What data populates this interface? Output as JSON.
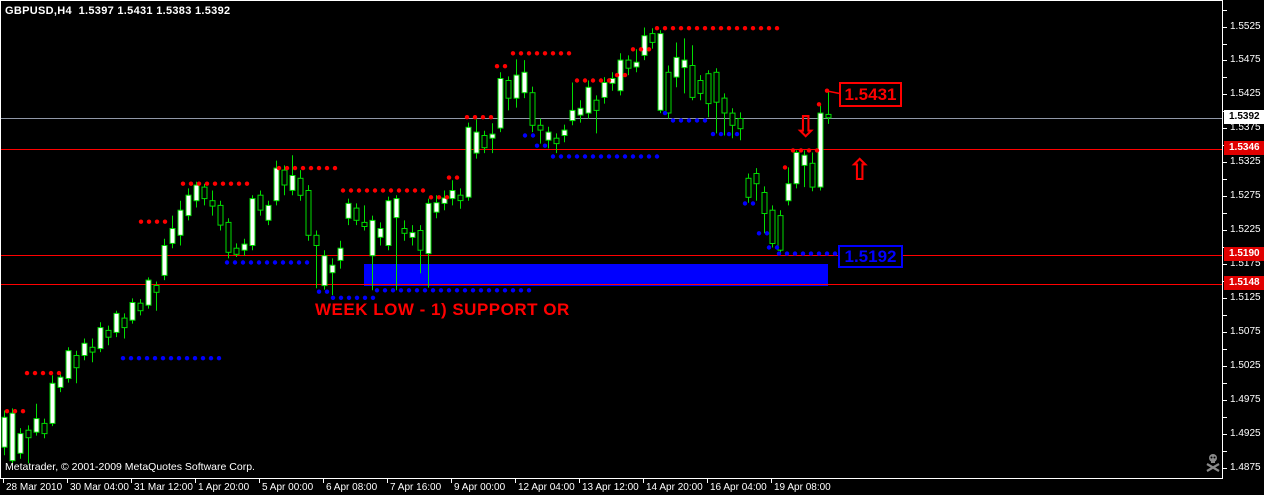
{
  "header": {
    "symbol_line": "GBPUSD,H4  1.5397 1.5431 1.5383 1.5392"
  },
  "watermark": "Metatrader, © 2001-2009 MetaQuotes Software Corp.",
  "colors": {
    "background": "#000000",
    "frame": "#ffffff",
    "candle_outline": "#00dd00",
    "bull_fill": "#ffffff",
    "bear_fill": "#000000",
    "red_level": "#ff0000",
    "blue_level": "#0000ff",
    "bid_line": "#9098a8",
    "axis_text": "#ffffff",
    "current_box_bg": "#ffffff",
    "alert_box_bg": "#e00000"
  },
  "chart_data": {
    "type": "candlestick",
    "title": "GBPUSD,H4",
    "symbol": "GBPUSD",
    "timeframe": "H4",
    "ohlc_display": {
      "open": "1.5397",
      "high": "1.5431",
      "low": "1.5383",
      "close": "1.5392"
    },
    "ylim": [
      1.486,
      1.5553
    ],
    "grid": false,
    "price_axis": {
      "labels": [
        "1.5525",
        "1.5475",
        "1.5425",
        "1.5375",
        "1.5325",
        "1.5275",
        "1.5225",
        "1.5175",
        "1.5125",
        "1.5075",
        "1.5025",
        "1.4975",
        "1.4925",
        "1.4875"
      ],
      "minor_tick_step": 0.0025,
      "boxes": [
        {
          "text": "1.5392",
          "price": 1.5392,
          "type": "current"
        },
        {
          "text": "1.5346",
          "price": 1.5346,
          "type": "alert"
        },
        {
          "text": "1.5190",
          "price": 1.519,
          "type": "alert"
        },
        {
          "text": "1.5148",
          "price": 1.5148,
          "type": "alert"
        }
      ]
    },
    "time_axis": {
      "labels": [
        "28 Mar 2010",
        "30 Mar 04:00",
        "31 Mar 12:00",
        "1 Apr 20:00",
        "5 Apr 00:00",
        "6 Apr 08:00",
        "7 Apr 16:00",
        "9 Apr 00:00",
        "12 Apr 04:00",
        "13 Apr 12:00",
        "14 Apr 20:00",
        "16 Apr 04:00",
        "19 Apr 08:00"
      ],
      "candles_per_label": 8
    },
    "hlines": [
      {
        "price": 1.5392,
        "color": "#9098a8",
        "name": "bid-line"
      },
      {
        "price": 1.5346,
        "color": "#ff0000",
        "name": "resistance-line"
      },
      {
        "price": 1.519,
        "color": "#ff0000",
        "name": "support-line-1"
      },
      {
        "price": 1.5148,
        "color": "#ff0000",
        "name": "support-line-2"
      }
    ],
    "rectangle": {
      "x1": 363,
      "x2": 827,
      "price_top": 1.5176,
      "price_bottom": 1.5144,
      "color": "#0000ff"
    },
    "candles": [
      [
        1.4907,
        1.4961,
        1.4895,
        1.4951
      ],
      [
        1.4887,
        1.4964,
        1.4883,
        1.4957
      ],
      [
        1.4898,
        1.4935,
        1.489,
        1.4927
      ],
      [
        1.4932,
        1.4939,
        1.4883,
        1.4921
      ],
      [
        1.4929,
        1.4971,
        1.4924,
        1.4949
      ],
      [
        1.4942,
        1.4949,
        1.492,
        1.4927
      ],
      [
        1.4942,
        1.5013,
        1.4938,
        1.5001
      ],
      [
        1.4995,
        1.5017,
        1.4988,
        1.501
      ],
      [
        1.5008,
        1.5054,
        1.5002,
        1.5049
      ],
      [
        1.5042,
        1.5049,
        1.5001,
        1.5024
      ],
      [
        1.5042,
        1.5067,
        1.5035,
        1.506
      ],
      [
        1.5054,
        1.5067,
        1.5032,
        1.5047
      ],
      [
        1.5052,
        1.5091,
        1.5047,
        1.5083
      ],
      [
        1.5079,
        1.5086,
        1.5057,
        1.5069
      ],
      [
        1.5076,
        1.5108,
        1.5069,
        1.5104
      ],
      [
        1.5097,
        1.5104,
        1.5067,
        1.5083
      ],
      [
        1.5094,
        1.5126,
        1.5089,
        1.512
      ],
      [
        1.5119,
        1.5125,
        1.5101,
        1.5108
      ],
      [
        1.5116,
        1.5157,
        1.5111,
        1.5153
      ],
      [
        1.5145,
        1.5151,
        1.5108,
        1.5135
      ],
      [
        1.516,
        1.5214,
        1.5153,
        1.5204
      ],
      [
        1.5207,
        1.5248,
        1.52,
        1.5229
      ],
      [
        1.5219,
        1.527,
        1.5204,
        1.5256
      ],
      [
        1.5248,
        1.5288,
        1.5241,
        1.5278
      ],
      [
        1.527,
        1.5298,
        1.526,
        1.5293
      ],
      [
        1.529,
        1.5295,
        1.5263,
        1.5273
      ],
      [
        1.527,
        1.5285,
        1.5248,
        1.5262
      ],
      [
        1.5263,
        1.527,
        1.5226,
        1.5234
      ],
      [
        1.5238,
        1.5244,
        1.5185,
        1.5194
      ],
      [
        1.52,
        1.5207,
        1.5187,
        1.5191
      ],
      [
        1.5197,
        1.5214,
        1.5189,
        1.5206
      ],
      [
        1.5204,
        1.5278,
        1.5197,
        1.5273
      ],
      [
        1.5278,
        1.5285,
        1.5248,
        1.5256
      ],
      [
        1.5241,
        1.527,
        1.5234,
        1.5263
      ],
      [
        1.527,
        1.5329,
        1.5263,
        1.5318
      ],
      [
        1.5315,
        1.5322,
        1.5278,
        1.5293
      ],
      [
        1.5285,
        1.5337,
        1.5278,
        1.5307
      ],
      [
        1.5303,
        1.5315,
        1.527,
        1.5278
      ],
      [
        1.5285,
        1.5293,
        1.5211,
        1.5219
      ],
      [
        1.5219,
        1.5226,
        1.5141,
        1.5204
      ],
      [
        1.5145,
        1.5197,
        1.5139,
        1.5189
      ],
      [
        1.5164,
        1.5185,
        1.5131,
        1.5175
      ],
      [
        1.5182,
        1.5211,
        1.517,
        1.52
      ],
      [
        1.5244,
        1.5273,
        1.5234,
        1.5266
      ],
      [
        1.5259,
        1.5266,
        1.5234,
        1.5241
      ],
      [
        1.5238,
        1.5263,
        1.5226,
        1.5232
      ],
      [
        1.5189,
        1.5248,
        1.5138,
        1.5241
      ],
      [
        1.5216,
        1.5238,
        1.5204,
        1.5229
      ],
      [
        1.5204,
        1.5276,
        1.5197,
        1.527
      ],
      [
        1.5245,
        1.5278,
        1.5138,
        1.5273
      ],
      [
        1.5229,
        1.5241,
        1.5211,
        1.5222
      ],
      [
        1.5216,
        1.5234,
        1.5204,
        1.5223
      ],
      [
        1.5226,
        1.5234,
        1.5163,
        1.5197
      ],
      [
        1.5192,
        1.5273,
        1.5142,
        1.5266
      ],
      [
        1.5253,
        1.5278,
        1.5244,
        1.5267
      ],
      [
        1.5266,
        1.5285,
        1.5256,
        1.5274
      ],
      [
        1.5273,
        1.53,
        1.5263,
        1.5285
      ],
      [
        1.5278,
        1.5288,
        1.5258,
        1.527
      ],
      [
        1.5275,
        1.5385,
        1.527,
        1.5378
      ],
      [
        1.534,
        1.539,
        1.5332,
        1.5371
      ],
      [
        1.5366,
        1.5373,
        1.534,
        1.5348
      ],
      [
        1.5362,
        1.5384,
        1.534,
        1.5368
      ],
      [
        1.5377,
        1.5459,
        1.5371,
        1.545
      ],
      [
        1.5447,
        1.5453,
        1.5403,
        1.5421
      ],
      [
        1.5421,
        1.5478,
        1.5407,
        1.5455
      ],
      [
        1.5429,
        1.5477,
        1.5421,
        1.5459
      ],
      [
        1.5429,
        1.5438,
        1.5371,
        1.5381
      ],
      [
        1.5381,
        1.5391,
        1.5354,
        1.5374
      ],
      [
        1.5359,
        1.5379,
        1.5347,
        1.5371
      ],
      [
        1.5362,
        1.5369,
        1.534,
        1.5354
      ],
      [
        1.5366,
        1.5382,
        1.5356,
        1.5374
      ],
      [
        1.5388,
        1.5444,
        1.5381,
        1.5403
      ],
      [
        1.5396,
        1.5418,
        1.5385,
        1.5406
      ],
      [
        1.5399,
        1.5447,
        1.5391,
        1.5437
      ],
      [
        1.5418,
        1.5425,
        1.5369,
        1.5403
      ],
      [
        1.5422,
        1.5452,
        1.5413,
        1.5444
      ],
      [
        1.5443,
        1.5459,
        1.5432,
        1.545
      ],
      [
        1.5432,
        1.5487,
        1.5425,
        1.5477
      ],
      [
        1.5477,
        1.5484,
        1.5455,
        1.5465
      ],
      [
        1.5467,
        1.5493,
        1.5459,
        1.5474
      ],
      [
        1.5484,
        1.5525,
        1.5477,
        1.5513
      ],
      [
        1.5516,
        1.5524,
        1.5494,
        1.5503
      ],
      [
        1.5403,
        1.5521,
        1.5399,
        1.5516
      ],
      [
        1.5459,
        1.5469,
        1.5391,
        1.5399
      ],
      [
        1.5452,
        1.5503,
        1.5437,
        1.5481
      ],
      [
        1.5466,
        1.5509,
        1.5428,
        1.5477
      ],
      [
        1.5469,
        1.5499,
        1.5418,
        1.5422
      ],
      [
        1.5447,
        1.5455,
        1.5418,
        1.5428
      ],
      [
        1.5457,
        1.5462,
        1.5393,
        1.5413
      ],
      [
        1.5459,
        1.5465,
        1.5369,
        1.5415
      ],
      [
        1.5421,
        1.5428,
        1.5366,
        1.5399
      ],
      [
        1.5399,
        1.5406,
        1.5362,
        1.5381
      ],
      [
        1.5391,
        1.54,
        1.5359,
        1.5376
      ],
      [
        1.5303,
        1.531,
        1.5267,
        1.5275
      ],
      [
        1.531,
        1.5318,
        1.527,
        1.5295
      ],
      [
        1.5282,
        1.5291,
        1.5222,
        1.5251
      ],
      [
        1.5256,
        1.5263,
        1.5201,
        1.5207
      ],
      [
        1.5248,
        1.5256,
        1.5191,
        1.5197
      ],
      [
        1.527,
        1.5319,
        1.5263,
        1.5295
      ],
      [
        1.5295,
        1.5344,
        1.5288,
        1.5341
      ],
      [
        1.5322,
        1.5344,
        1.529,
        1.5337
      ],
      [
        1.5325,
        1.5341,
        1.5284,
        1.529
      ],
      [
        1.529,
        1.541,
        1.5285,
        1.5399
      ],
      [
        1.5397,
        1.5431,
        1.5383,
        1.5392
      ]
    ],
    "red_dot_rows": [
      [
        1.496,
        6,
        22
      ],
      [
        1.5016,
        26,
        62
      ],
      [
        1.5239,
        140,
        164
      ],
      [
        1.5295,
        182,
        250
      ],
      [
        1.5318,
        278,
        338
      ],
      [
        1.5285,
        342,
        426
      ],
      [
        1.5275,
        430,
        446
      ],
      [
        1.5304,
        448,
        462
      ],
      [
        1.5393,
        466,
        492
      ],
      [
        1.5468,
        496,
        510
      ],
      [
        1.5487,
        512,
        572
      ],
      [
        1.5447,
        576,
        612
      ],
      [
        1.5455,
        616,
        628
      ],
      [
        1.5493,
        632,
        652
      ],
      [
        1.5524,
        656,
        778
      ],
      [
        1.5319,
        784,
        788
      ],
      [
        1.5344,
        792,
        818
      ],
      [
        1.5412,
        818,
        818
      ],
      [
        1.5432,
        826,
        826
      ]
    ],
    "blue_dot_rows": [
      [
        1.5038,
        122,
        220
      ],
      [
        1.5179,
        226,
        310
      ],
      [
        1.5136,
        318,
        330
      ],
      [
        1.5127,
        332,
        372
      ],
      [
        1.5138,
        376,
        532
      ],
      [
        1.5366,
        524,
        532
      ],
      [
        1.5351,
        536,
        548
      ],
      [
        1.5335,
        552,
        662
      ],
      [
        1.5399,
        664,
        670
      ],
      [
        1.5388,
        672,
        710
      ],
      [
        1.5368,
        712,
        736
      ],
      [
        1.5266,
        744,
        756
      ],
      [
        1.5222,
        758,
        766
      ],
      [
        1.5201,
        768,
        776
      ],
      [
        1.5192,
        778,
        854
      ]
    ],
    "annotations": {
      "price_label_high": {
        "text": "1.5431",
        "color": "#ff0000",
        "anchor_price": 1.5431,
        "anchor_x": 827
      },
      "price_label_low": {
        "text": "1.5192",
        "color": "#0000ff"
      },
      "week_low_text": {
        "text": "WEEK LOW - 1) SUPPORT OR",
        "color": "#ff0000"
      },
      "down_arrow": {
        "glyph": "⇩",
        "color": "#ff0000"
      },
      "up_arrow": {
        "glyph": "⇧",
        "color": "#ff0000"
      }
    }
  }
}
